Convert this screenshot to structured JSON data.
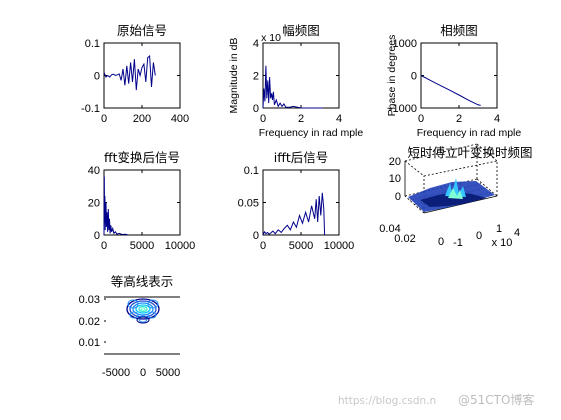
{
  "figure": {
    "watermark_url": "https://blog.csdn.n",
    "watermark_brand": "@51CTO博客"
  },
  "chart_data": [
    {
      "id": "orig",
      "type": "line",
      "title": "原始信号",
      "xlim": [
        0,
        400
      ],
      "ylim": [
        -0.1,
        0.1
      ],
      "xticks": [
        "0",
        "200",
        "400"
      ],
      "yticks": [
        "-0.1",
        "0",
        "0.1"
      ],
      "series": [
        {
          "color": "#00008b",
          "x": [
            0,
            10,
            20,
            30,
            40,
            50,
            60,
            70,
            80,
            90,
            100,
            110,
            120,
            130,
            140,
            150,
            160,
            170,
            180,
            190,
            200,
            210,
            220,
            230,
            240,
            250,
            260,
            270
          ],
          "y": [
            0.01,
            -0.005,
            0.0,
            -0.005,
            0.002,
            0.004,
            0.0,
            0.002,
            0.005,
            -0.015,
            0.02,
            -0.03,
            0.03,
            -0.025,
            0.04,
            -0.02,
            0.05,
            -0.045,
            0.02,
            0.0,
            0.025,
            0.035,
            -0.02,
            0.055,
            0.06,
            -0.035,
            0.04,
            0.0
          ]
        }
      ]
    },
    {
      "id": "mag",
      "type": "line",
      "title": "幅频图",
      "ylabel": "Magnitude in dB",
      "xlabel": "Frequency in rad mple",
      "exponent": "x 10",
      "xlim": [
        0,
        4
      ],
      "ylim": [
        0,
        4
      ],
      "xticks": [
        "0",
        "2",
        "4"
      ],
      "yticks": [
        "0",
        "2",
        "4"
      ],
      "series": [
        {
          "color": "#00008b",
          "x": [
            0,
            0.05,
            0.1,
            0.15,
            0.2,
            0.25,
            0.3,
            0.35,
            0.4,
            0.45,
            0.5,
            0.55,
            0.6,
            0.7,
            0.8,
            0.9,
            1.0,
            1.1,
            1.2,
            1.4,
            1.6,
            2.0,
            3.0,
            3.14
          ],
          "y": [
            0.0,
            1.2,
            0.4,
            2.6,
            0.6,
            1.7,
            0.3,
            1.9,
            0.6,
            0.9,
            0.5,
            1.0,
            0.2,
            0.5,
            0.1,
            0.3,
            0.1,
            0.25,
            0.05,
            0.05,
            0.1,
            0.0,
            0.0,
            0.0
          ]
        }
      ]
    },
    {
      "id": "phase",
      "type": "line",
      "title": "相频图",
      "ylabel": "Phase in degrees",
      "xlabel": "Frequency in rad mple",
      "xlim": [
        0,
        4
      ],
      "ylim": [
        -1000,
        1000
      ],
      "xticks": [
        "0",
        "2",
        "4"
      ],
      "yticks": [
        "-1000",
        "0",
        "1000"
      ],
      "series": [
        {
          "color": "#00008b",
          "x": [
            0,
            0.5,
            1.0,
            1.5,
            2.0,
            2.5,
            3.0,
            3.14
          ],
          "y": [
            0,
            -150,
            -300,
            -450,
            -600,
            -760,
            -900,
            -920
          ]
        }
      ]
    },
    {
      "id": "fft",
      "type": "line",
      "title": "fft变换后信号",
      "xlim": [
        0,
        10000
      ],
      "ylim": [
        0,
        40
      ],
      "xticks": [
        "0",
        "5000",
        "10000"
      ],
      "yticks": [
        "0",
        "20",
        "40"
      ],
      "series": [
        {
          "color": "#00008b",
          "x": [
            0,
            40,
            80,
            120,
            160,
            200,
            260,
            320,
            400,
            480,
            560,
            640,
            720,
            800,
            900,
            1000,
            1150,
            1300,
            1500,
            1700,
            2000,
            2400,
            2800,
            3200
          ],
          "y": [
            0,
            36,
            8,
            24,
            3,
            15,
            20,
            5,
            14,
            2,
            16,
            3,
            10,
            1,
            6,
            2,
            4,
            1,
            2,
            0.5,
            1,
            0.3,
            0.5,
            0
          ]
        }
      ]
    },
    {
      "id": "ifft",
      "type": "line",
      "title": "ifft后信号",
      "xlim": [
        0,
        10000
      ],
      "ylim": [
        0,
        0.1
      ],
      "xticks": [
        "0",
        "5000",
        "10000"
      ],
      "yticks": [
        "0",
        "0.05",
        "0.1"
      ],
      "series": [
        {
          "color": "#00008b",
          "x": [
            0,
            200,
            400,
            600,
            800,
            1000,
            1300,
            1600,
            2000,
            2400,
            2800,
            3200,
            3600,
            4000,
            4400,
            4800,
            5200,
            5600,
            6000,
            6400,
            6800,
            7000,
            7200,
            7400,
            7600,
            7800,
            8000,
            8100
          ],
          "y": [
            0.0,
            0.005,
            0.002,
            0.004,
            0.001,
            0.003,
            0.006,
            0.002,
            0.008,
            0.004,
            0.01,
            0.015,
            0.008,
            0.02,
            0.012,
            0.03,
            0.018,
            0.035,
            0.02,
            0.045,
            0.025,
            0.055,
            0.02,
            0.06,
            0.03,
            0.065,
            0.04,
            0.0
          ]
        }
      ]
    },
    {
      "id": "stft",
      "type": "surface",
      "title": "短时傅立叶变换时频图",
      "zticks": [
        "0",
        "10",
        "20"
      ],
      "yticks": [
        "0.04",
        "0.02",
        "0"
      ],
      "xticks": [
        "-1",
        "0",
        "1"
      ],
      "xexponent": "x 10",
      "xexponent_power": "4"
    },
    {
      "id": "contour",
      "type": "contour",
      "title": "等高线表示",
      "xlim": [
        -8000,
        8000
      ],
      "ylim": [
        0,
        0.03
      ],
      "xticks": [
        "-5000",
        "0",
        "5000"
      ],
      "yticks": [
        "0.01",
        "0.02",
        "0.03"
      ]
    }
  ]
}
